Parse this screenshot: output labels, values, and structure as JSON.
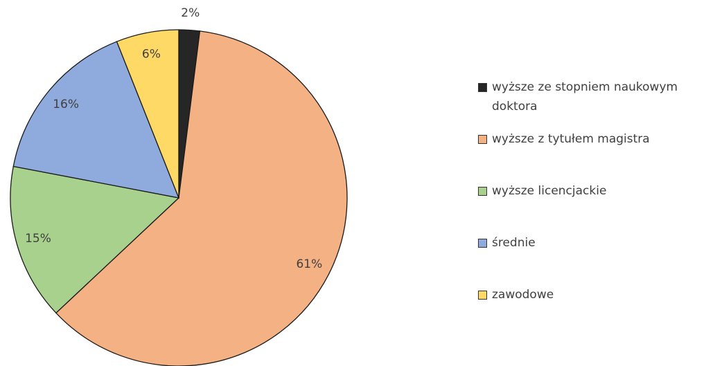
{
  "chart_data": {
    "type": "pie",
    "categories": [
      "wyższe ze stopniem naukowym doktora",
      "wyższe z tytułem magistra",
      "wyższe licencjackie",
      "średnie",
      "zawodowe"
    ],
    "values": [
      2,
      61,
      15,
      16,
      6
    ],
    "value_labels": [
      "2%",
      "61%",
      "15%",
      "16%",
      "6%"
    ],
    "colors": [
      "#262626",
      "#f4b183",
      "#a9d18e",
      "#8faadc",
      "#ffd966"
    ],
    "legend": "right"
  }
}
